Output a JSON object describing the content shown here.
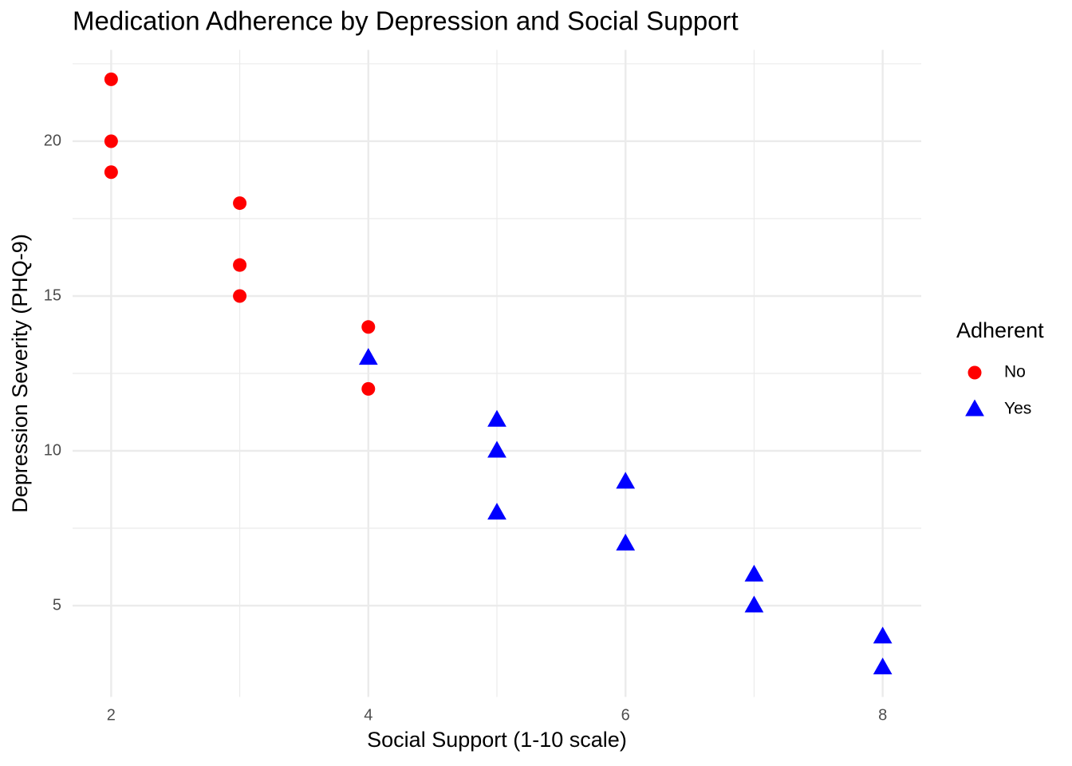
{
  "chart_data": {
    "type": "scatter",
    "title": "Medication Adherence by Depression and Social Support",
    "x_label": "Social Support (1-10 scale)",
    "y_label": "Depression Severity (PHQ-9)",
    "legend_title": "Adherent",
    "legend_position": "right",
    "grid": true,
    "xlim": [
      1.7,
      8.3
    ],
    "ylim": [
      2.05,
      22.95
    ],
    "xticks": [
      2,
      4,
      6,
      8
    ],
    "yticks": [
      5,
      10,
      15,
      20
    ],
    "x_minor_breaks": [
      3,
      5,
      7
    ],
    "y_minor_breaks": [
      7.5,
      12.5,
      17.5,
      22.5
    ],
    "series": [
      {
        "name": "No",
        "color": "#ff0000",
        "marker": "circle",
        "x": [
          2,
          2,
          2,
          3,
          3,
          3,
          4,
          4
        ],
        "y": [
          22,
          20,
          19,
          18,
          16,
          15,
          14,
          12
        ]
      },
      {
        "name": "Yes",
        "color": "#0000ff",
        "marker": "triangle",
        "x": [
          4,
          5,
          5,
          5,
          6,
          6,
          7,
          7,
          8,
          8
        ],
        "y": [
          13,
          11,
          10,
          8,
          9,
          7,
          6,
          5,
          4,
          3
        ]
      }
    ]
  }
}
